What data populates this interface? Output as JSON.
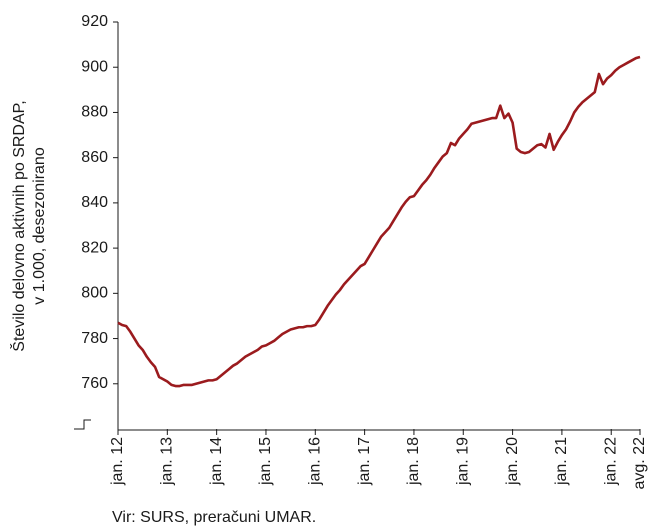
{
  "chart_data": {
    "type": "line",
    "y_label": [
      "Število delovno aktivnih po SRDAP,",
      "v 1.000, desezonirano"
    ],
    "source": "Vir: SURS, preračuni UMAR.",
    "categories": [
      "jan. 12",
      null,
      null,
      null,
      null,
      null,
      null,
      null,
      null,
      null,
      null,
      null,
      "jan. 13",
      null,
      null,
      null,
      null,
      null,
      null,
      null,
      null,
      null,
      null,
      null,
      "jan. 14",
      null,
      null,
      null,
      null,
      null,
      null,
      null,
      null,
      null,
      null,
      null,
      "jan. 15",
      null,
      null,
      null,
      null,
      null,
      null,
      null,
      null,
      null,
      null,
      null,
      "jan. 16",
      null,
      null,
      null,
      null,
      null,
      null,
      null,
      null,
      null,
      null,
      null,
      "jan. 17",
      null,
      null,
      null,
      null,
      null,
      null,
      null,
      null,
      null,
      null,
      null,
      "jan. 18",
      null,
      null,
      null,
      null,
      null,
      null,
      null,
      null,
      null,
      null,
      null,
      "jan. 19",
      null,
      null,
      null,
      null,
      null,
      null,
      null,
      null,
      null,
      null,
      null,
      "jan. 20",
      null,
      null,
      null,
      null,
      null,
      null,
      null,
      null,
      null,
      null,
      null,
      "jan. 21",
      null,
      null,
      null,
      null,
      null,
      null,
      null,
      null,
      null,
      null,
      null,
      "jan. 22",
      null,
      null,
      null,
      null,
      null,
      null,
      "avg. 22"
    ],
    "series": [
      {
        "color": "#9b1b1e",
        "values": [
          787,
          786,
          785.5,
          783,
          780,
          777,
          775,
          772,
          769.5,
          767.5,
          763,
          762,
          761,
          759.5,
          759,
          759,
          759.5,
          759.5,
          759.5,
          760,
          760.5,
          761,
          761.5,
          761.5,
          762,
          763.5,
          765,
          766.5,
          768,
          769,
          770.5,
          772,
          773,
          774,
          775,
          776.5,
          777,
          778,
          779,
          780.5,
          782,
          783,
          784,
          784.5,
          785,
          785,
          785.5,
          785.5,
          786,
          788.5,
          791.5,
          794.5,
          797,
          799.5,
          801.5,
          804,
          806,
          808,
          810,
          812,
          813,
          816,
          819,
          822,
          825,
          827,
          829,
          832,
          835,
          838,
          840.5,
          842.5,
          843,
          845.5,
          848,
          850,
          852.5,
          855.5,
          858,
          860.5,
          862,
          866.5,
          865.5,
          868.5,
          870.5,
          872.5,
          875,
          875.5,
          876,
          876.5,
          877,
          877.5,
          877.5,
          883,
          877.5,
          879.5,
          875.5,
          864,
          862.5,
          862,
          862.5,
          864,
          865.5,
          866,
          864.5,
          870.5,
          863.5,
          867,
          870,
          872.5,
          876,
          880,
          882.5,
          884.5,
          886,
          887.5,
          889,
          897,
          892.5,
          895,
          896.5,
          898.5,
          900,
          901,
          902,
          903,
          904,
          904.5
        ]
      }
    ],
    "ylim": [
      740,
      920
    ],
    "yticks": [
      760,
      780,
      800,
      820,
      840,
      860,
      880,
      900,
      920
    ]
  }
}
